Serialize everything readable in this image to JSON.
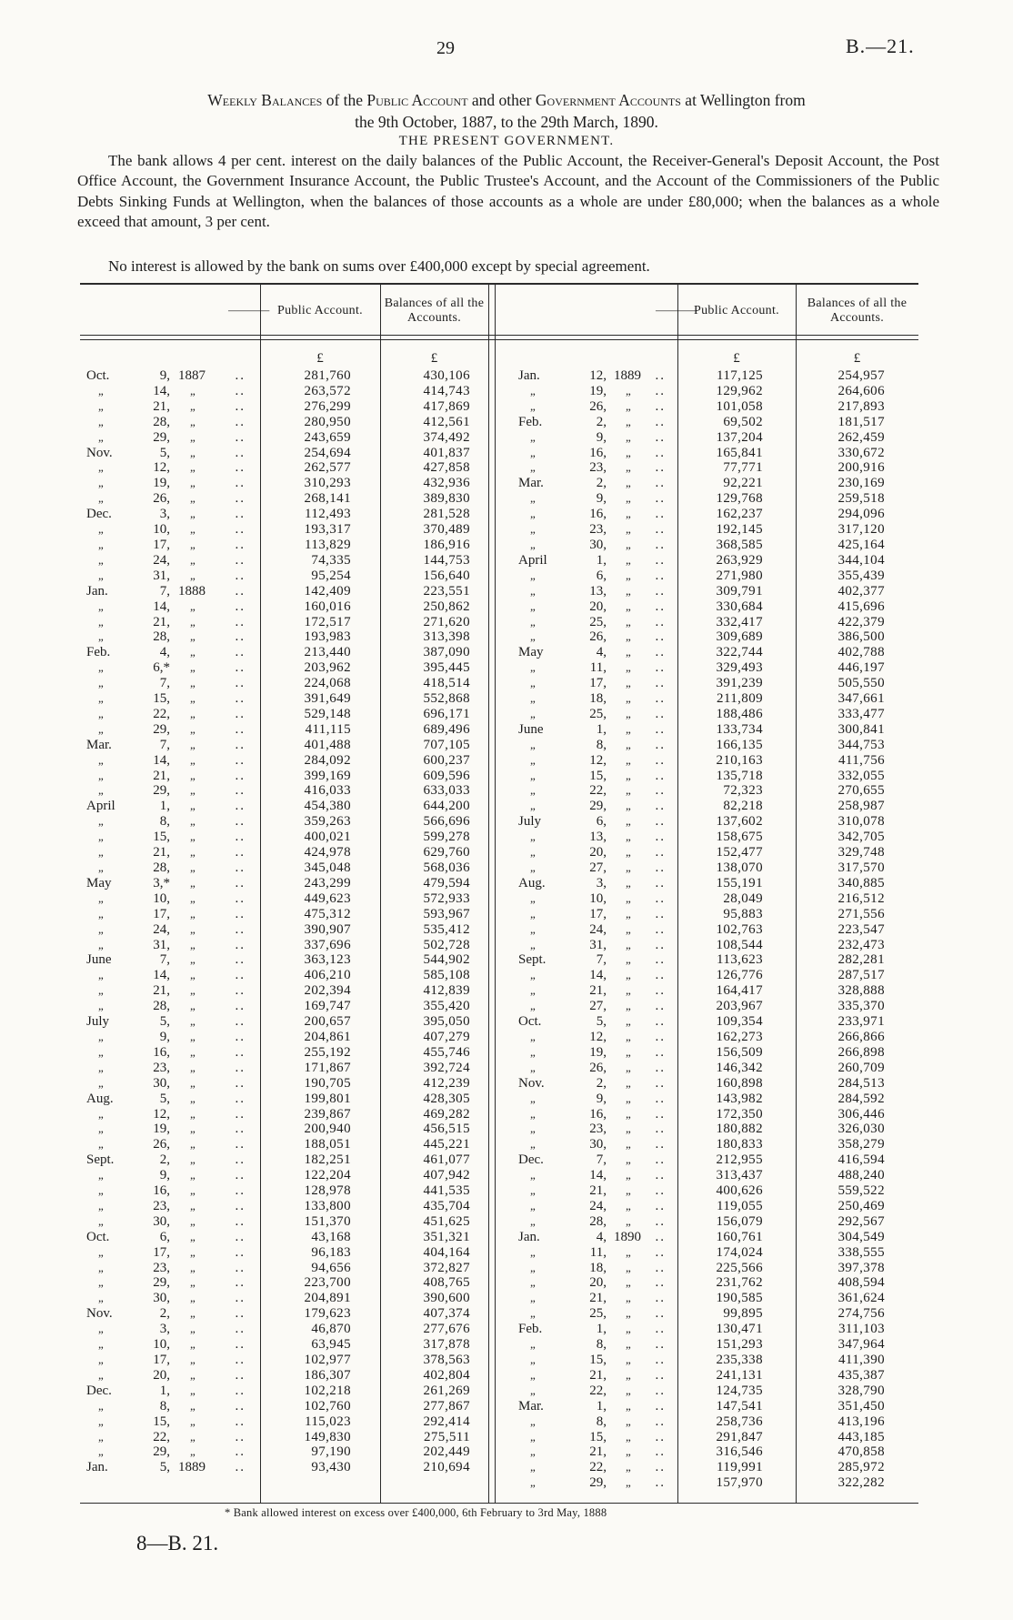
{
  "page": {
    "page_number": "29",
    "doc_ref": "B.—21.",
    "footer_ref": "8—B. 21."
  },
  "heading": {
    "title_segments": [
      {
        "text": "Weekly Balances",
        "sc": true
      },
      {
        "text": " of the ",
        "sc": false
      },
      {
        "text": "Public Account",
        "sc": true
      },
      {
        "text": " and other ",
        "sc": false
      },
      {
        "text": "Government Accounts",
        "sc": true
      },
      {
        "text": " at Wellington from",
        "sc": false
      }
    ],
    "title_line2": "the 9th October, 1887, to the 29th March, 1890.",
    "subtitle": "THE PRESENT GOVERNMENT.",
    "para1": "The bank allows 4 per cent. interest on the daily balances of the Public Account, the Receiver-General's Deposit Account, the Post Office Account, the Government Insurance Account, the Public Trustee's Account, and the Account of the Commissioners of the Public Debts Sinking Funds at Wellington, when the balances of those accounts as a whole are under £80,000; when the balances as a whole exceed that amount, 3 per cent.",
    "para2": "No interest is allowed by the bank on sums over £400,000 except by special agreement."
  },
  "table": {
    "columns": [
      "—",
      "Public Account.",
      "Balances of all the Accounts."
    ],
    "currency_symbol": "£",
    "ditto": "„",
    "left_rows": [
      [
        "Oct.",
        "9,",
        "1887",
        "281,760",
        "430,106"
      ],
      [
        "",
        "14,",
        "",
        "263,572",
        "414,743"
      ],
      [
        "",
        "21,",
        "",
        "276,299",
        "417,869"
      ],
      [
        "",
        "28,",
        "",
        "280,950",
        "412,561"
      ],
      [
        "",
        "29,",
        "",
        "243,659",
        "374,492"
      ],
      [
        "Nov.",
        "5,",
        "",
        "254,694",
        "401,837"
      ],
      [
        "",
        "12,",
        "",
        "262,577",
        "427,858"
      ],
      [
        "",
        "19,",
        "",
        "310,293",
        "432,936"
      ],
      [
        "",
        "26,",
        "",
        "268,141",
        "389,830"
      ],
      [
        "Dec.",
        "3,",
        "",
        "112,493",
        "281,528"
      ],
      [
        "",
        "10,",
        "",
        "193,317",
        "370,489"
      ],
      [
        "",
        "17,",
        "",
        "113,829",
        "186,916"
      ],
      [
        "",
        "24,",
        "",
        "74,335",
        "144,753"
      ],
      [
        "",
        "31,",
        "",
        "95,254",
        "156,640"
      ],
      [
        "Jan.",
        "7,",
        "1888",
        "142,409",
        "223,551"
      ],
      [
        "",
        "14,",
        "",
        "160,016",
        "250,862"
      ],
      [
        "",
        "21,",
        "",
        "172,517",
        "271,620"
      ],
      [
        "",
        "28,",
        "",
        "193,983",
        "313,398"
      ],
      [
        "Feb.",
        "4,",
        "",
        "213,440",
        "387,090"
      ],
      [
        "",
        "6,*",
        "",
        "203,962",
        "395,445"
      ],
      [
        "",
        "7,",
        "",
        "224,068",
        "418,514"
      ],
      [
        "",
        "15,",
        "",
        "391,649",
        "552,868"
      ],
      [
        "",
        "22,",
        "",
        "529,148",
        "696,171"
      ],
      [
        "",
        "29,",
        "",
        "411,115",
        "689,496"
      ],
      [
        "Mar.",
        "7,",
        "",
        "401,488",
        "707,105"
      ],
      [
        "",
        "14,",
        "",
        "284,092",
        "600,237"
      ],
      [
        "",
        "21,",
        "",
        "399,169",
        "609,596"
      ],
      [
        "",
        "29,",
        "",
        "416,033",
        "633,033"
      ],
      [
        "April",
        "1,",
        "",
        "454,380",
        "644,200"
      ],
      [
        "",
        "8,",
        "",
        "359,263",
        "566,696"
      ],
      [
        "",
        "15,",
        "",
        "400,021",
        "599,278"
      ],
      [
        "",
        "21,",
        "",
        "424,978",
        "629,760"
      ],
      [
        "",
        "28,",
        "",
        "345,048",
        "568,036"
      ],
      [
        "May",
        "3,*",
        "",
        "243,299",
        "479,594"
      ],
      [
        "",
        "10,",
        "",
        "449,623",
        "572,933"
      ],
      [
        "",
        "17,",
        "",
        "475,312",
        "593,967"
      ],
      [
        "",
        "24,",
        "",
        "390,907",
        "535,412"
      ],
      [
        "",
        "31,",
        "",
        "337,696",
        "502,728"
      ],
      [
        "June",
        "7,",
        "",
        "363,123",
        "544,902"
      ],
      [
        "",
        "14,",
        "",
        "406,210",
        "585,108"
      ],
      [
        "",
        "21,",
        "",
        "202,394",
        "412,839"
      ],
      [
        "",
        "28,",
        "",
        "169,747",
        "355,420"
      ],
      [
        "July",
        "5,",
        "",
        "200,657",
        "395,050"
      ],
      [
        "",
        "9,",
        "",
        "204,861",
        "407,279"
      ],
      [
        "",
        "16,",
        "",
        "255,192",
        "455,746"
      ],
      [
        "",
        "23,",
        "",
        "171,867",
        "392,724"
      ],
      [
        "",
        "30,",
        "",
        "190,705",
        "412,239"
      ],
      [
        "Aug.",
        "5,",
        "",
        "199,801",
        "428,305"
      ],
      [
        "",
        "12,",
        "",
        "239,867",
        "469,282"
      ],
      [
        "",
        "19,",
        "",
        "200,940",
        "456,515"
      ],
      [
        "",
        "26,",
        "",
        "188,051",
        "445,221"
      ],
      [
        "Sept.",
        "2,",
        "",
        "182,251",
        "461,077"
      ],
      [
        "",
        "9,",
        "",
        "122,204",
        "407,942"
      ],
      [
        "",
        "16,",
        "",
        "128,978",
        "441,535"
      ],
      [
        "",
        "23,",
        "",
        "133,800",
        "435,704"
      ],
      [
        "",
        "30,",
        "",
        "151,370",
        "451,625"
      ],
      [
        "Oct.",
        "6,",
        "",
        "43,168",
        "351,321"
      ],
      [
        "",
        "17,",
        "",
        "96,183",
        "404,164"
      ],
      [
        "",
        "23,",
        "",
        "94,656",
        "372,827"
      ],
      [
        "",
        "29,",
        "",
        "223,700",
        "408,765"
      ],
      [
        "",
        "30,",
        "",
        "204,891",
        "390,600"
      ],
      [
        "Nov.",
        "2,",
        "",
        "179,623",
        "407,374"
      ],
      [
        "",
        "3,",
        "",
        "46,870",
        "277,676"
      ],
      [
        "",
        "10,",
        "",
        "63,945",
        "317,878"
      ],
      [
        "",
        "17,",
        "",
        "102,977",
        "378,563"
      ],
      [
        "",
        "20,",
        "",
        "186,307",
        "402,804"
      ],
      [
        "Dec.",
        "1,",
        "",
        "102,218",
        "261,269"
      ],
      [
        "",
        "8,",
        "",
        "102,760",
        "277,867"
      ],
      [
        "",
        "15,",
        "",
        "115,023",
        "292,414"
      ],
      [
        "",
        "22,",
        "",
        "149,830",
        "275,511"
      ],
      [
        "",
        "29,",
        "",
        "97,190",
        "202,449"
      ],
      [
        "Jan.",
        "5,",
        "1889",
        "93,430",
        "210,694"
      ]
    ],
    "right_rows": [
      [
        "Jan.",
        "12,",
        "1889",
        "117,125",
        "254,957"
      ],
      [
        "",
        "19,",
        "",
        "129,962",
        "264,606"
      ],
      [
        "",
        "26,",
        "",
        "101,058",
        "217,893"
      ],
      [
        "Feb.",
        "2,",
        "",
        "69,502",
        "181,517"
      ],
      [
        "",
        "9,",
        "",
        "137,204",
        "262,459"
      ],
      [
        "",
        "16,",
        "",
        "165,841",
        "330,672"
      ],
      [
        "",
        "23,",
        "",
        "77,771",
        "200,916"
      ],
      [
        "Mar.",
        "2,",
        "",
        "92,221",
        "230,169"
      ],
      [
        "",
        "9,",
        "",
        "129,768",
        "259,518"
      ],
      [
        "",
        "16,",
        "",
        "162,237",
        "294,096"
      ],
      [
        "",
        "23,",
        "",
        "192,145",
        "317,120"
      ],
      [
        "",
        "30,",
        "",
        "368,585",
        "425,164"
      ],
      [
        "April",
        "1,",
        "",
        "263,929",
        "344,104"
      ],
      [
        "",
        "6,",
        "",
        "271,980",
        "355,439"
      ],
      [
        "",
        "13,",
        "",
        "309,791",
        "402,377"
      ],
      [
        "",
        "20,",
        "",
        "330,684",
        "415,696"
      ],
      [
        "",
        "25,",
        "",
        "332,417",
        "422,379"
      ],
      [
        "",
        "26,",
        "",
        "309,689",
        "386,500"
      ],
      [
        "May",
        "4,",
        "",
        "322,744",
        "402,788"
      ],
      [
        "",
        "11,",
        "",
        "329,493",
        "446,197"
      ],
      [
        "",
        "17,",
        "",
        "391,239",
        "505,550"
      ],
      [
        "",
        "18,",
        "",
        "211,809",
        "347,661"
      ],
      [
        "",
        "25,",
        "",
        "188,486",
        "333,477"
      ],
      [
        "June",
        "1,",
        "",
        "133,734",
        "300,841"
      ],
      [
        "",
        "8,",
        "",
        "166,135",
        "344,753"
      ],
      [
        "",
        "12,",
        "",
        "210,163",
        "411,756"
      ],
      [
        "",
        "15,",
        "",
        "135,718",
        "332,055"
      ],
      [
        "",
        "22,",
        "",
        "72,323",
        "270,655"
      ],
      [
        "",
        "29,",
        "",
        "82,218",
        "258,987"
      ],
      [
        "July",
        "6,",
        "",
        "137,602",
        "310,078"
      ],
      [
        "",
        "13,",
        "",
        "158,675",
        "342,705"
      ],
      [
        "",
        "20,",
        "",
        "152,477",
        "329,748"
      ],
      [
        "",
        "27,",
        "",
        "138,070",
        "317,570"
      ],
      [
        "Aug.",
        "3,",
        "",
        "155,191",
        "340,885"
      ],
      [
        "",
        "10,",
        "",
        "28,049",
        "216,512"
      ],
      [
        "",
        "17,",
        "",
        "95,883",
        "271,556"
      ],
      [
        "",
        "24,",
        "",
        "102,763",
        "223,547"
      ],
      [
        "",
        "31,",
        "",
        "108,544",
        "232,473"
      ],
      [
        "Sept.",
        "7,",
        "",
        "113,623",
        "282,281"
      ],
      [
        "",
        "14,",
        "",
        "126,776",
        "287,517"
      ],
      [
        "",
        "21,",
        "",
        "164,417",
        "328,888"
      ],
      [
        "",
        "27,",
        "",
        "203,967",
        "335,370"
      ],
      [
        "Oct.",
        "5,",
        "",
        "109,354",
        "233,971"
      ],
      [
        "",
        "12,",
        "",
        "162,273",
        "266,866"
      ],
      [
        "",
        "19,",
        "",
        "156,509",
        "266,898"
      ],
      [
        "",
        "26,",
        "",
        "146,342",
        "260,709"
      ],
      [
        "Nov.",
        "2,",
        "",
        "160,898",
        "284,513"
      ],
      [
        "",
        "9,",
        "",
        "143,982",
        "284,592"
      ],
      [
        "",
        "16,",
        "",
        "172,350",
        "306,446"
      ],
      [
        "",
        "23,",
        "",
        "180,882",
        "326,030"
      ],
      [
        "",
        "30,",
        "",
        "180,833",
        "358,279"
      ],
      [
        "Dec.",
        "7,",
        "",
        "212,955",
        "416,594"
      ],
      [
        "",
        "14,",
        "",
        "313,437",
        "488,240"
      ],
      [
        "",
        "21,",
        "",
        "400,626",
        "559,522"
      ],
      [
        "",
        "24,",
        "",
        "119,055",
        "250,469"
      ],
      [
        "",
        "28,",
        "",
        "156,079",
        "292,567"
      ],
      [
        "Jan.",
        "4,",
        "1890",
        "160,761",
        "304,549"
      ],
      [
        "",
        "11,",
        "",
        "174,024",
        "338,555"
      ],
      [
        "",
        "18,",
        "",
        "225,566",
        "397,378"
      ],
      [
        "",
        "20,",
        "",
        "231,762",
        "408,594"
      ],
      [
        "",
        "21,",
        "",
        "190,585",
        "361,624"
      ],
      [
        "",
        "25,",
        "",
        "99,895",
        "274,756"
      ],
      [
        "Feb.",
        "1,",
        "",
        "130,471",
        "311,103"
      ],
      [
        "",
        "8,",
        "",
        "151,293",
        "347,964"
      ],
      [
        "",
        "15,",
        "",
        "235,338",
        "411,390"
      ],
      [
        "",
        "21,",
        "",
        "241,131",
        "435,387"
      ],
      [
        "",
        "22,",
        "",
        "124,735",
        "328,790"
      ],
      [
        "Mar.",
        "1,",
        "",
        "147,541",
        "351,450"
      ],
      [
        "",
        "8,",
        "",
        "258,736",
        "413,196"
      ],
      [
        "",
        "15,",
        "",
        "291,847",
        "443,185"
      ],
      [
        "",
        "21,",
        "",
        "316,546",
        "470,858"
      ],
      [
        "",
        "22,",
        "",
        "119,991",
        "285,972"
      ],
      [
        "",
        "29,",
        "",
        "157,970",
        "322,282"
      ]
    ]
  },
  "footnote": "* Bank allowed interest on excess over £400,000, 6th February to 3rd May, 1888"
}
